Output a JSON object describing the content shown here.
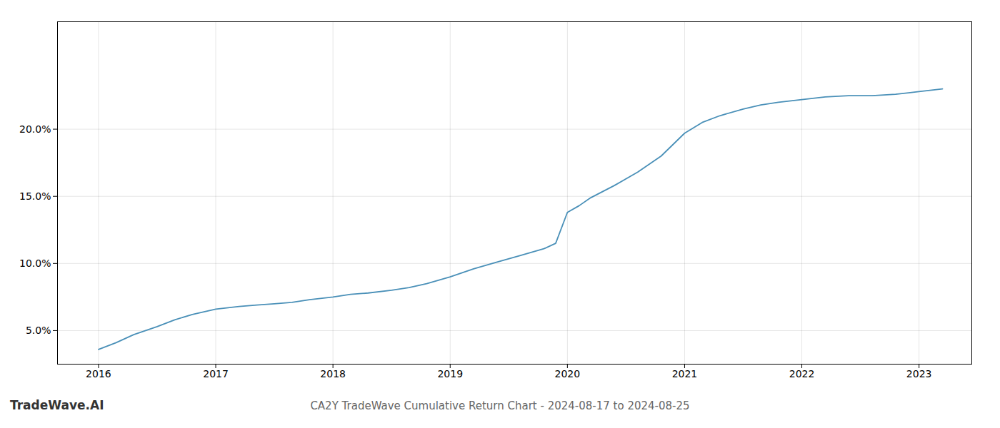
{
  "chart_data": {
    "type": "line",
    "title": "CA2Y TradeWave Cumulative Return Chart - 2024-08-17 to 2024-08-25",
    "annotations": [
      "TradeWave.AI"
    ],
    "x": [
      2016.0,
      2016.15,
      2016.3,
      2016.5,
      2016.65,
      2016.8,
      2017.0,
      2017.2,
      2017.35,
      2017.5,
      2017.65,
      2017.8,
      2018.0,
      2018.15,
      2018.3,
      2018.5,
      2018.65,
      2018.8,
      2019.0,
      2019.2,
      2019.4,
      2019.6,
      2019.8,
      2019.9,
      2020.0,
      2020.1,
      2020.2,
      2020.4,
      2020.6,
      2020.8,
      2021.0,
      2021.15,
      2021.3,
      2021.5,
      2021.65,
      2021.8,
      2022.0,
      2022.2,
      2022.4,
      2022.6,
      2022.8,
      2023.0,
      2023.2
    ],
    "values": [
      0.036,
      0.041,
      0.047,
      0.053,
      0.058,
      0.062,
      0.066,
      0.068,
      0.069,
      0.07,
      0.071,
      0.073,
      0.075,
      0.077,
      0.078,
      0.08,
      0.082,
      0.085,
      0.09,
      0.096,
      0.101,
      0.106,
      0.111,
      0.115,
      0.138,
      0.143,
      0.149,
      0.158,
      0.168,
      0.18,
      0.197,
      0.205,
      0.21,
      0.215,
      0.218,
      0.22,
      0.222,
      0.224,
      0.225,
      0.225,
      0.226,
      0.228,
      0.23
    ],
    "color": "#4a90b8",
    "xlim": [
      2015.65,
      2023.45
    ],
    "ylim": [
      0.025,
      0.28
    ],
    "xticks": [
      2016,
      2017,
      2018,
      2019,
      2020,
      2021,
      2022,
      2023
    ],
    "yticks": [
      {
        "value": 0.05,
        "label": "5.0%"
      },
      {
        "value": 0.1,
        "label": "10.0%"
      },
      {
        "value": 0.15,
        "label": "15.0%"
      },
      {
        "value": 0.2,
        "label": "20.0%"
      }
    ],
    "grid": true
  }
}
